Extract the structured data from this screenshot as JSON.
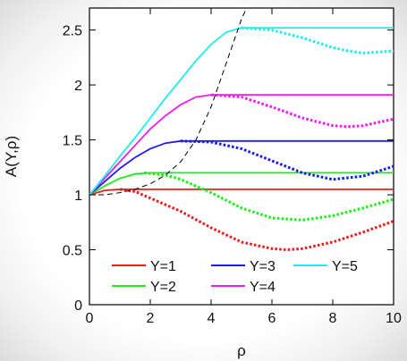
{
  "chart_data": {
    "type": "line",
    "title": "",
    "xlabel": "ρ",
    "ylabel": "A(Y,ρ)",
    "xlim": [
      0,
      10
    ],
    "ylim": [
      0,
      2.7
    ],
    "xticks": [
      "0",
      "2",
      "4",
      "6",
      "8",
      "10"
    ],
    "yticks": [
      "0",
      "0.5",
      "1",
      "1.5",
      "2",
      "2.5"
    ],
    "legend_position": "bottom",
    "grid": false,
    "colors": {
      "Y=1": "#ee1c1c",
      "Y=2": "#1cee1c",
      "Y=3": "#1c1cee",
      "Y=4": "#ee1cee",
      "Y=5": "#1ceeee",
      "boundary": "#000000"
    },
    "series": [
      {
        "name": "Y=1",
        "color": "#ee1c1c",
        "solid": {
          "x": [
            0,
            0.5,
            1,
            2,
            4,
            6,
            8,
            10
          ],
          "y": [
            1,
            1.04,
            1.05,
            1.05,
            1.05,
            1.05,
            1.05,
            1.05
          ]
        },
        "dotted": {
          "x": [
            1,
            1.5,
            2,
            3,
            4,
            5,
            6,
            6.5,
            7,
            8,
            9,
            10
          ],
          "y": [
            1.05,
            1.03,
            0.97,
            0.85,
            0.7,
            0.57,
            0.51,
            0.5,
            0.51,
            0.57,
            0.66,
            0.76
          ]
        }
      },
      {
        "name": "Y=2",
        "color": "#1cee1c",
        "solid": {
          "x": [
            0,
            0.5,
            1,
            1.5,
            2,
            4,
            6,
            8,
            10
          ],
          "y": [
            1,
            1.08,
            1.15,
            1.19,
            1.2,
            1.2,
            1.2,
            1.2,
            1.2
          ]
        },
        "dotted": {
          "x": [
            1.8,
            2.5,
            3,
            4,
            5,
            6,
            7,
            8,
            9,
            10
          ],
          "y": [
            1.2,
            1.18,
            1.14,
            1.02,
            0.88,
            0.79,
            0.77,
            0.81,
            0.88,
            0.96
          ]
        }
      },
      {
        "name": "Y=3",
        "color": "#1c1cee",
        "solid": {
          "x": [
            0,
            0.5,
            1,
            1.5,
            2,
            2.5,
            3,
            4,
            6,
            8,
            10
          ],
          "y": [
            1,
            1.12,
            1.24,
            1.34,
            1.42,
            1.47,
            1.49,
            1.49,
            1.49,
            1.49,
            1.49
          ]
        },
        "dotted": {
          "x": [
            3,
            4,
            5,
            6,
            7,
            8,
            9,
            10
          ],
          "y": [
            1.49,
            1.48,
            1.42,
            1.31,
            1.2,
            1.14,
            1.17,
            1.26
          ]
        }
      },
      {
        "name": "Y=4",
        "color": "#ee1cee",
        "solid": {
          "x": [
            0,
            0.5,
            1,
            1.5,
            2,
            2.5,
            3,
            3.5,
            4,
            6,
            8,
            10
          ],
          "y": [
            1,
            1.15,
            1.3,
            1.45,
            1.6,
            1.72,
            1.82,
            1.89,
            1.91,
            1.91,
            1.91,
            1.91
          ]
        },
        "dotted": {
          "x": [
            4,
            5,
            6,
            7,
            8,
            8.5,
            9,
            10
          ],
          "y": [
            1.91,
            1.89,
            1.8,
            1.7,
            1.63,
            1.62,
            1.63,
            1.69
          ]
        }
      },
      {
        "name": "Y=5",
        "color": "#1ceeee",
        "solid": {
          "x": [
            0,
            0.5,
            1,
            1.5,
            2,
            2.5,
            3,
            3.5,
            4,
            4.5,
            5,
            6,
            8,
            10
          ],
          "y": [
            1,
            1.17,
            1.35,
            1.52,
            1.7,
            1.88,
            2.05,
            2.22,
            2.37,
            2.48,
            2.52,
            2.52,
            2.52,
            2.52
          ]
        },
        "dotted": {
          "x": [
            5,
            6,
            7,
            8,
            8.5,
            9,
            10
          ],
          "y": [
            2.52,
            2.5,
            2.43,
            2.34,
            2.31,
            2.29,
            2.31
          ]
        }
      }
    ],
    "boundary_curve": {
      "style": "dashed",
      "color": "#000000",
      "x": [
        0,
        0.5,
        1,
        1.5,
        2,
        2.5,
        3,
        3.5,
        4,
        4.5,
        5,
        5.2
      ],
      "y": [
        1,
        1.0,
        1.02,
        1.05,
        1.1,
        1.18,
        1.3,
        1.5,
        1.8,
        2.2,
        2.6,
        2.72
      ]
    }
  }
}
